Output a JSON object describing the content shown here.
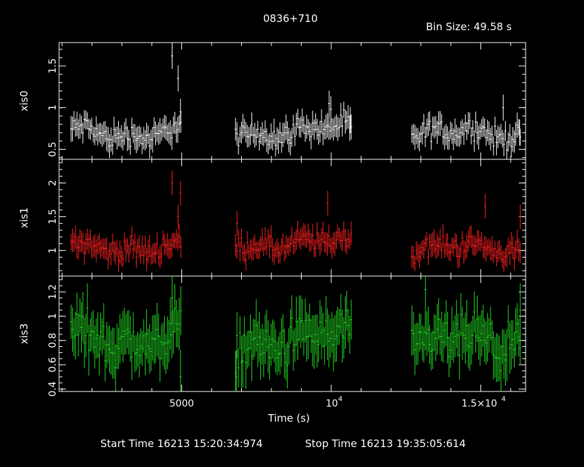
{
  "header": {
    "title": "0836+710",
    "bin_size": "Bin Size: 49.58 s"
  },
  "footer": {
    "start_time": "Start Time 16213 15:20:34:974",
    "stop_time": "Stop Time 16213 19:35:05:614"
  },
  "chart_data": {
    "type": "scatter",
    "title": "0836+710",
    "xlabel": "Time (s)",
    "xlim": [
      900,
      16500
    ],
    "x_ticks": [
      {
        "value": 5000,
        "label": "5000"
      },
      {
        "value": 10000,
        "label": "10^4"
      },
      {
        "value": 15000,
        "label": "1.5×10^4"
      }
    ],
    "x_tick_labels": {
      "t5000": "5000",
      "t1e4_base": "10",
      "t1e4_exp": "4",
      "t15k_base": "1.5×10",
      "t15k_exp": "4"
    },
    "gaps": [
      [
        4980,
        6800
      ],
      [
        10700,
        12700
      ]
    ],
    "segments": [
      [
        1300,
        4980
      ],
      [
        6800,
        10700
      ],
      [
        12700,
        16350
      ]
    ],
    "panels": [
      {
        "name": "xis0",
        "ylabel": "xis0",
        "color": "#ffffff",
        "ylim": [
          0.38,
          1.78
        ],
        "y_ticks": [
          0.5,
          1,
          1.5
        ],
        "y_tick_labels": [
          "0.5",
          "1",
          "1.5"
        ],
        "mean_by_segment": [
          0.7,
          0.72,
          0.68
        ],
        "err": 0.12,
        "spikes": [
          {
            "x": 4680,
            "y": 1.62
          },
          {
            "x": 4880,
            "y": 1.35
          },
          {
            "x": 4960,
            "y": 0.95
          },
          {
            "x": 9930,
            "y": 1.05
          },
          {
            "x": 9990,
            "y": 0.98
          },
          {
            "x": 10640,
            "y": 0.85
          },
          {
            "x": 15750,
            "y": 1.0
          },
          {
            "x": 16300,
            "y": 0.7
          }
        ]
      },
      {
        "name": "xis1",
        "ylabel": "xis1",
        "color": "#ff2020",
        "ylim": [
          0.62,
          2.35
        ],
        "y_ticks": [
          1,
          1.5,
          2
        ],
        "y_tick_labels": [
          "1",
          "1.5",
          "2"
        ],
        "mean_by_segment": [
          1.05,
          1.1,
          1.02
        ],
        "err": 0.14,
        "spikes": [
          {
            "x": 4680,
            "y": 2.0
          },
          {
            "x": 4880,
            "y": 1.5
          },
          {
            "x": 4960,
            "y": 1.85
          },
          {
            "x": 6850,
            "y": 1.4
          },
          {
            "x": 9880,
            "y": 1.7
          },
          {
            "x": 15150,
            "y": 1.65
          },
          {
            "x": 16320,
            "y": 1.5
          }
        ]
      },
      {
        "name": "xis3",
        "ylabel": "xis3",
        "color": "#22dd22",
        "ylim": [
          0.38,
          1.33
        ],
        "y_ticks": [
          0.4,
          0.6,
          0.8,
          1,
          1.2
        ],
        "y_tick_labels": [
          "0.4",
          "0.6",
          "0.8",
          "1",
          "1.2"
        ],
        "mean_by_segment": [
          0.82,
          0.8,
          0.77
        ],
        "err": 0.17,
        "spikes": [
          {
            "x": 4680,
            "y": 1.15
          },
          {
            "x": 4960,
            "y": 0.5
          },
          {
            "x": 6830,
            "y": 0.5
          },
          {
            "x": 13150,
            "y": 1.22
          },
          {
            "x": 16320,
            "y": 1.05
          }
        ]
      }
    ]
  }
}
